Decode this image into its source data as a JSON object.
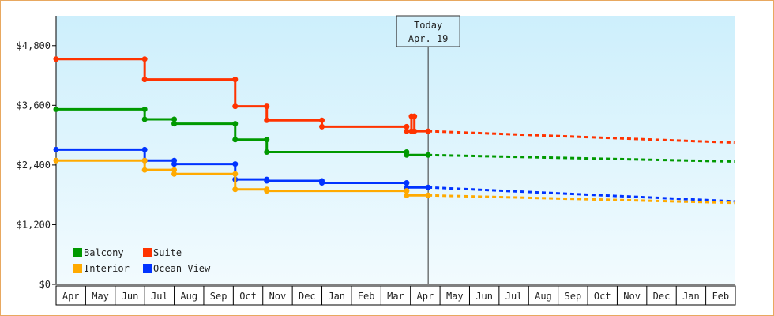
{
  "chart_data": {
    "type": "line",
    "title": "",
    "xlabel": "",
    "ylabel": "",
    "ylim": [
      0,
      5400
    ],
    "y_ticks": [
      {
        "value": 0,
        "label": "$0"
      },
      {
        "value": 1200,
        "label": "$1,200"
      },
      {
        "value": 2400,
        "label": "$2,400"
      },
      {
        "value": 3600,
        "label": "$3,600"
      },
      {
        "value": 4800,
        "label": "$4,800"
      }
    ],
    "x_start": "2023-04-01",
    "x_ticks": [
      "Apr",
      "May",
      "Jun",
      "Jul",
      "Aug",
      "Sep",
      "Oct",
      "Nov",
      "Dec",
      "Jan",
      "Feb",
      "Mar",
      "Apr",
      "May",
      "Jun",
      "Jul",
      "Aug",
      "Sep",
      "Oct",
      "Nov",
      "Dec",
      "Jan",
      "Feb"
    ],
    "grid": false,
    "legend_position": "bottom-left",
    "today": {
      "line1": "Today",
      "line2": "Apr. 19",
      "date": "2024-04-19"
    },
    "series": [
      {
        "name": "Suite",
        "color": "#ff3300",
        "points": [
          [
            "2023-04-01",
            4530
          ],
          [
            "2023-07-01",
            4530
          ],
          [
            "2023-07-01",
            4120
          ],
          [
            "2023-10-03",
            4120
          ],
          [
            "2023-10-03",
            3580
          ],
          [
            "2023-11-05",
            3580
          ],
          [
            "2023-11-05",
            3300
          ],
          [
            "2024-01-01",
            3300
          ],
          [
            "2024-01-01",
            3170
          ],
          [
            "2024-03-28",
            3170
          ],
          [
            "2024-03-28",
            3080
          ],
          [
            "2024-04-02",
            3080
          ],
          [
            "2024-04-02",
            3380
          ],
          [
            "2024-04-05",
            3380
          ],
          [
            "2024-04-05",
            3080
          ],
          [
            "2024-04-19",
            3080
          ]
        ],
        "projection": [
          [
            "2024-04-19",
            3080
          ],
          [
            "2025-02-28",
            2850
          ]
        ]
      },
      {
        "name": "Balcony",
        "color": "#009900",
        "points": [
          [
            "2023-04-01",
            3520
          ],
          [
            "2023-07-01",
            3520
          ],
          [
            "2023-07-01",
            3320
          ],
          [
            "2023-08-01",
            3320
          ],
          [
            "2023-08-01",
            3230
          ],
          [
            "2023-10-03",
            3230
          ],
          [
            "2023-10-03",
            2910
          ],
          [
            "2023-11-05",
            2910
          ],
          [
            "2023-11-05",
            2660
          ],
          [
            "2024-03-28",
            2660
          ],
          [
            "2024-03-28",
            2600
          ],
          [
            "2024-04-19",
            2600
          ]
        ],
        "projection": [
          [
            "2024-04-19",
            2600
          ],
          [
            "2025-02-28",
            2470
          ]
        ]
      },
      {
        "name": "Ocean View",
        "color": "#0033ff",
        "points": [
          [
            "2023-04-01",
            2710
          ],
          [
            "2023-07-01",
            2710
          ],
          [
            "2023-07-01",
            2490
          ],
          [
            "2023-08-01",
            2490
          ],
          [
            "2023-08-01",
            2420
          ],
          [
            "2023-10-03",
            2420
          ],
          [
            "2023-10-03",
            2110
          ],
          [
            "2023-11-05",
            2110
          ],
          [
            "2023-11-05",
            2080
          ],
          [
            "2024-01-01",
            2080
          ],
          [
            "2024-01-01",
            2040
          ],
          [
            "2024-03-28",
            2040
          ],
          [
            "2024-03-28",
            1950
          ],
          [
            "2024-04-19",
            1950
          ]
        ],
        "projection": [
          [
            "2024-04-19",
            1950
          ],
          [
            "2025-02-28",
            1670
          ]
        ]
      },
      {
        "name": "Interior",
        "color": "#ffaa00",
        "points": [
          [
            "2023-04-01",
            2490
          ],
          [
            "2023-07-01",
            2490
          ],
          [
            "2023-07-01",
            2300
          ],
          [
            "2023-08-01",
            2300
          ],
          [
            "2023-08-01",
            2220
          ],
          [
            "2023-10-03",
            2220
          ],
          [
            "2023-10-03",
            1910
          ],
          [
            "2023-11-05",
            1910
          ],
          [
            "2023-11-05",
            1880
          ],
          [
            "2024-03-28",
            1880
          ],
          [
            "2024-03-28",
            1790
          ],
          [
            "2024-04-19",
            1790
          ]
        ],
        "projection": [
          [
            "2024-04-19",
            1790
          ],
          [
            "2025-02-28",
            1640
          ]
        ]
      }
    ],
    "legend": [
      {
        "name": "Balcony",
        "color": "#009900"
      },
      {
        "name": "Suite",
        "color": "#ff3300"
      },
      {
        "name": "Interior",
        "color": "#ffaa00"
      },
      {
        "name": "Ocean View",
        "color": "#0033ff"
      }
    ]
  }
}
